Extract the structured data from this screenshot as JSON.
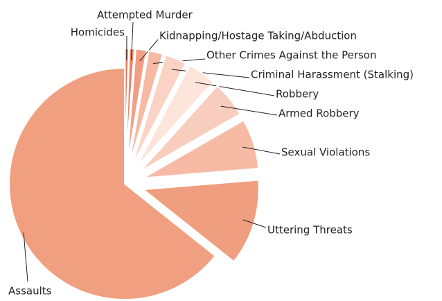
{
  "chart_data": {
    "type": "pie",
    "categories": [
      "Homicides",
      "Attempted Murder",
      "Kidnapping/Hostage Taking/Abduction",
      "Other Crimes Against the Person",
      "Criminal Harassment (Stalking)",
      "Robbery",
      "Armed Robbery",
      "Sexual Violations",
      "Uttering Threats",
      "Assaults"
    ],
    "values": [
      0.5,
      0.7,
      1.5,
      2,
      3,
      4,
      5,
      7,
      12,
      64.3
    ],
    "colors": [
      "#e07a5e",
      "#e8866a",
      "#f19e84",
      "#f6b9a3",
      "#fad3c4",
      "#fde5dc",
      "#f9cdbd",
      "#f6baa5",
      "#f09e80",
      "#f0a080"
    ]
  }
}
